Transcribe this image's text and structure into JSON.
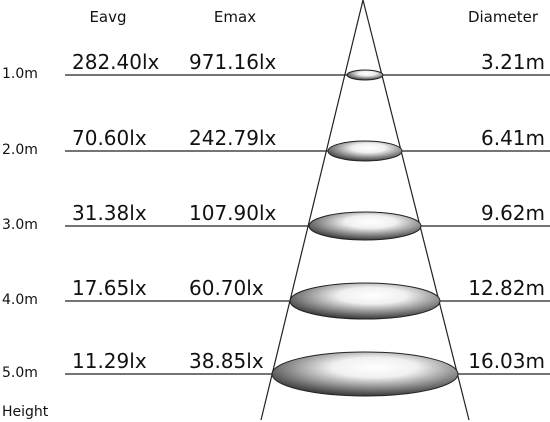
{
  "header": {
    "eavg": "Eavg",
    "emax": "Emax",
    "diameter": "Diameter"
  },
  "rows": [
    {
      "height": "1.0m",
      "eavg": "282.40lx",
      "emax": "971.16lx",
      "diameter": "3.21m"
    },
    {
      "height": "2.0m",
      "eavg": "70.60lx",
      "emax": "242.79lx",
      "diameter": "6.41m"
    },
    {
      "height": "3.0m",
      "eavg": "31.38lx",
      "emax": "107.90lx",
      "diameter": "9.62m"
    },
    {
      "height": "4.0m",
      "eavg": "17.65lx",
      "emax": "60.70lx",
      "diameter": "12.82m"
    },
    {
      "height": "5.0m",
      "eavg": "11.29lx",
      "emax": "38.85lx",
      "diameter": "16.03m"
    }
  ],
  "footer": {
    "height": "Height"
  }
}
